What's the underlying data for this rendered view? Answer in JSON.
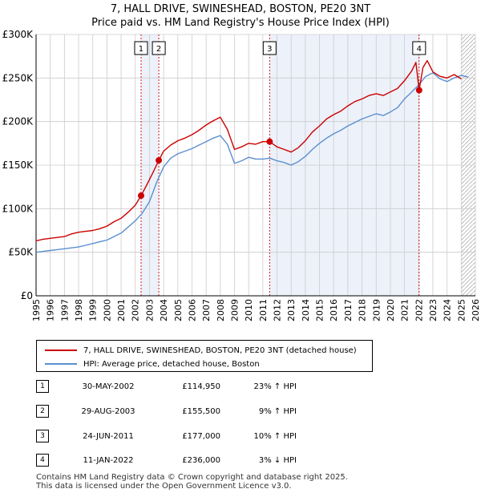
{
  "title_line1": "7, HALL DRIVE, SWINESHEAD, BOSTON, PE20 3NT",
  "title_line2": "Price paid vs. HM Land Registry's House Price Index (HPI)",
  "colors": {
    "property": "#cc0000",
    "hpi": "#5b8fd0",
    "vline": "#cc0000",
    "grid": "#cccccc",
    "shade": "#dde6f5"
  },
  "legend": {
    "property": "7, HALL DRIVE, SWINESHEAD, BOSTON, PE20 3NT (detached house)",
    "hpi": "HPI: Average price, detached house, Boston"
  },
  "transactions": [
    {
      "num": "1",
      "date": "30-MAY-2002",
      "price": "£114,950",
      "hpi": "23% ↑ HPI"
    },
    {
      "num": "2",
      "date": "29-AUG-2003",
      "price": "£155,500",
      "hpi": "9% ↑ HPI"
    },
    {
      "num": "3",
      "date": "24-JUN-2011",
      "price": "£177,000",
      "hpi": "10% ↑ HPI"
    },
    {
      "num": "4",
      "date": "11-JAN-2022",
      "price": "£236,000",
      "hpi": "3% ↓ HPI"
    }
  ],
  "footer_line1": "Contains HM Land Registry data © Crown copyright and database right 2025.",
  "footer_line2": "This data is licensed under the Open Government Licence v3.0.",
  "chart_data": {
    "type": "line",
    "title": "7, HALL DRIVE, SWINESHEAD, BOSTON, PE20 3NT — Price paid vs. HM Land Registry's House Price Index (HPI)",
    "xlabel": "",
    "ylabel": "",
    "xlim": [
      1995,
      2026
    ],
    "ylim": [
      0,
      300000
    ],
    "x_ticks": [
      1995,
      1996,
      1997,
      1998,
      1999,
      2000,
      2001,
      2002,
      2003,
      2004,
      2005,
      2006,
      2007,
      2008,
      2009,
      2010,
      2011,
      2012,
      2013,
      2014,
      2015,
      2016,
      2017,
      2018,
      2019,
      2020,
      2021,
      2022,
      2023,
      2024,
      2025,
      2026
    ],
    "y_ticks": [
      {
        "value": 0,
        "label": "£0"
      },
      {
        "value": 50000,
        "label": "£50K"
      },
      {
        "value": 100000,
        "label": "£100K"
      },
      {
        "value": 150000,
        "label": "£150K"
      },
      {
        "value": 200000,
        "label": "£200K"
      },
      {
        "value": 250000,
        "label": "£250K"
      },
      {
        "value": 300000,
        "label": "£300K"
      }
    ],
    "grid": true,
    "projection_start": 2025.0,
    "series": [
      {
        "name": "7, HALL DRIVE, SWINESHEAD, BOSTON, PE20 3NT (detached house)",
        "x": [
          1995.0,
          1995.5,
          1996.0,
          1996.5,
          1997.0,
          1997.5,
          1998.0,
          1998.5,
          1999.0,
          1999.5,
          2000.0,
          2000.5,
          2001.0,
          2001.5,
          2002.0,
          2002.41,
          2002.8,
          2003.2,
          2003.66,
          2004.0,
          2004.5,
          2005.0,
          2005.5,
          2006.0,
          2006.5,
          2007.0,
          2007.5,
          2008.0,
          2008.5,
          2009.0,
          2009.5,
          2010.0,
          2010.5,
          2011.0,
          2011.48,
          2012.0,
          2012.5,
          2013.0,
          2013.5,
          2014.0,
          2014.5,
          2015.0,
          2015.5,
          2016.0,
          2016.5,
          2017.0,
          2017.5,
          2018.0,
          2018.5,
          2019.0,
          2019.5,
          2020.0,
          2020.5,
          2021.0,
          2021.5,
          2021.8,
          2022.03,
          2022.3,
          2022.6,
          2023.0,
          2023.5,
          2024.0,
          2024.5,
          2025.0
        ],
        "values": [
          63000,
          65000,
          66000,
          67000,
          68000,
          71000,
          73000,
          74000,
          75000,
          77000,
          80000,
          85000,
          89000,
          96000,
          104000,
          114950,
          127000,
          140000,
          155500,
          166000,
          173000,
          178000,
          181000,
          185000,
          190000,
          196000,
          201000,
          205000,
          191000,
          168000,
          171000,
          175000,
          174000,
          177000,
          177000,
          171000,
          168000,
          165000,
          170000,
          178000,
          188000,
          195000,
          203000,
          208000,
          212000,
          218000,
          223000,
          226000,
          230000,
          232000,
          230000,
          234000,
          238000,
          247000,
          258000,
          268000,
          236000,
          262000,
          270000,
          257000,
          252000,
          250000,
          254000,
          249000
        ]
      },
      {
        "name": "HPI: Average price, detached house, Boston",
        "x": [
          1995.0,
          1995.5,
          1996.0,
          1996.5,
          1997.0,
          1997.5,
          1998.0,
          1998.5,
          1999.0,
          1999.5,
          2000.0,
          2000.5,
          2001.0,
          2001.5,
          2002.0,
          2002.5,
          2003.0,
          2003.5,
          2004.0,
          2004.5,
          2005.0,
          2005.5,
          2006.0,
          2006.5,
          2007.0,
          2007.5,
          2008.0,
          2008.5,
          2009.0,
          2009.5,
          2010.0,
          2010.5,
          2011.0,
          2011.5,
          2012.0,
          2012.5,
          2013.0,
          2013.5,
          2014.0,
          2014.5,
          2015.0,
          2015.5,
          2016.0,
          2016.5,
          2017.0,
          2017.5,
          2018.0,
          2018.5,
          2019.0,
          2019.5,
          2020.0,
          2020.5,
          2021.0,
          2021.5,
          2022.0,
          2022.5,
          2023.0,
          2023.5,
          2024.0,
          2024.5,
          2025.0,
          2025.5
        ],
        "values": [
          50000,
          51000,
          52000,
          53000,
          54000,
          55000,
          56000,
          58000,
          60000,
          62000,
          64000,
          68000,
          72000,
          79000,
          86000,
          95000,
          108000,
          130000,
          148000,
          158000,
          163000,
          166000,
          169000,
          173000,
          177000,
          181000,
          184000,
          174000,
          152000,
          155000,
          159000,
          157000,
          157000,
          158000,
          155000,
          153000,
          150000,
          154000,
          160000,
          168000,
          175000,
          181000,
          186000,
          190000,
          195000,
          199000,
          203000,
          206000,
          209000,
          207000,
          211000,
          216000,
          226000,
          234000,
          242000,
          252000,
          256000,
          249000,
          246000,
          250000,
          253000,
          251000
        ]
      }
    ],
    "sale_markers": [
      {
        "label": "1",
        "x": 2002.41,
        "value": 114950
      },
      {
        "label": "2",
        "x": 2003.66,
        "value": 155500
      },
      {
        "label": "3",
        "x": 2011.48,
        "value": 177000
      },
      {
        "label": "4",
        "x": 2022.03,
        "value": 236000
      }
    ]
  }
}
